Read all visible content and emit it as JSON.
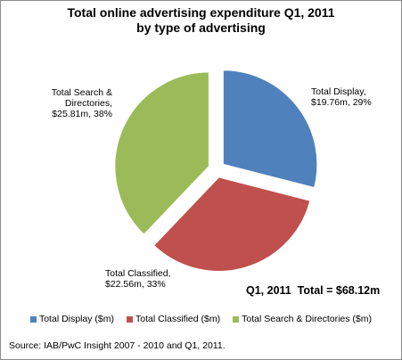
{
  "chart_data": {
    "type": "pie",
    "title": "Total online advertising expenditure Q1, 2011",
    "subtitle": "by type of advertising",
    "categories": [
      "Total Display ($m)",
      "Total Classified ($m)",
      "Total Search & Directories ($m)"
    ],
    "slices": [
      {
        "label": "Total Display",
        "value": 19.76,
        "percent": 29,
        "color": "#4f81bd",
        "label_lines": [
          "Total Display,",
          "$19.76m, 29%"
        ]
      },
      {
        "label": "Total Classified",
        "value": 22.56,
        "percent": 33,
        "color": "#c0504d",
        "label_lines": [
          "Total Classified,",
          "$22.56m, 33%"
        ]
      },
      {
        "label": "Total Search & Directories",
        "value": 25.81,
        "percent": 38,
        "color": "#9bbb59",
        "label_lines": [
          "Total Search &",
          "Directories,",
          "$25.81m, 38%"
        ]
      }
    ],
    "total_text": "Q1, 2011  Total = $68.12m",
    "legend_position": "bottom",
    "source": "Source: IAB/PwC Insight 2007 - 2010 and Q1, 2011."
  }
}
